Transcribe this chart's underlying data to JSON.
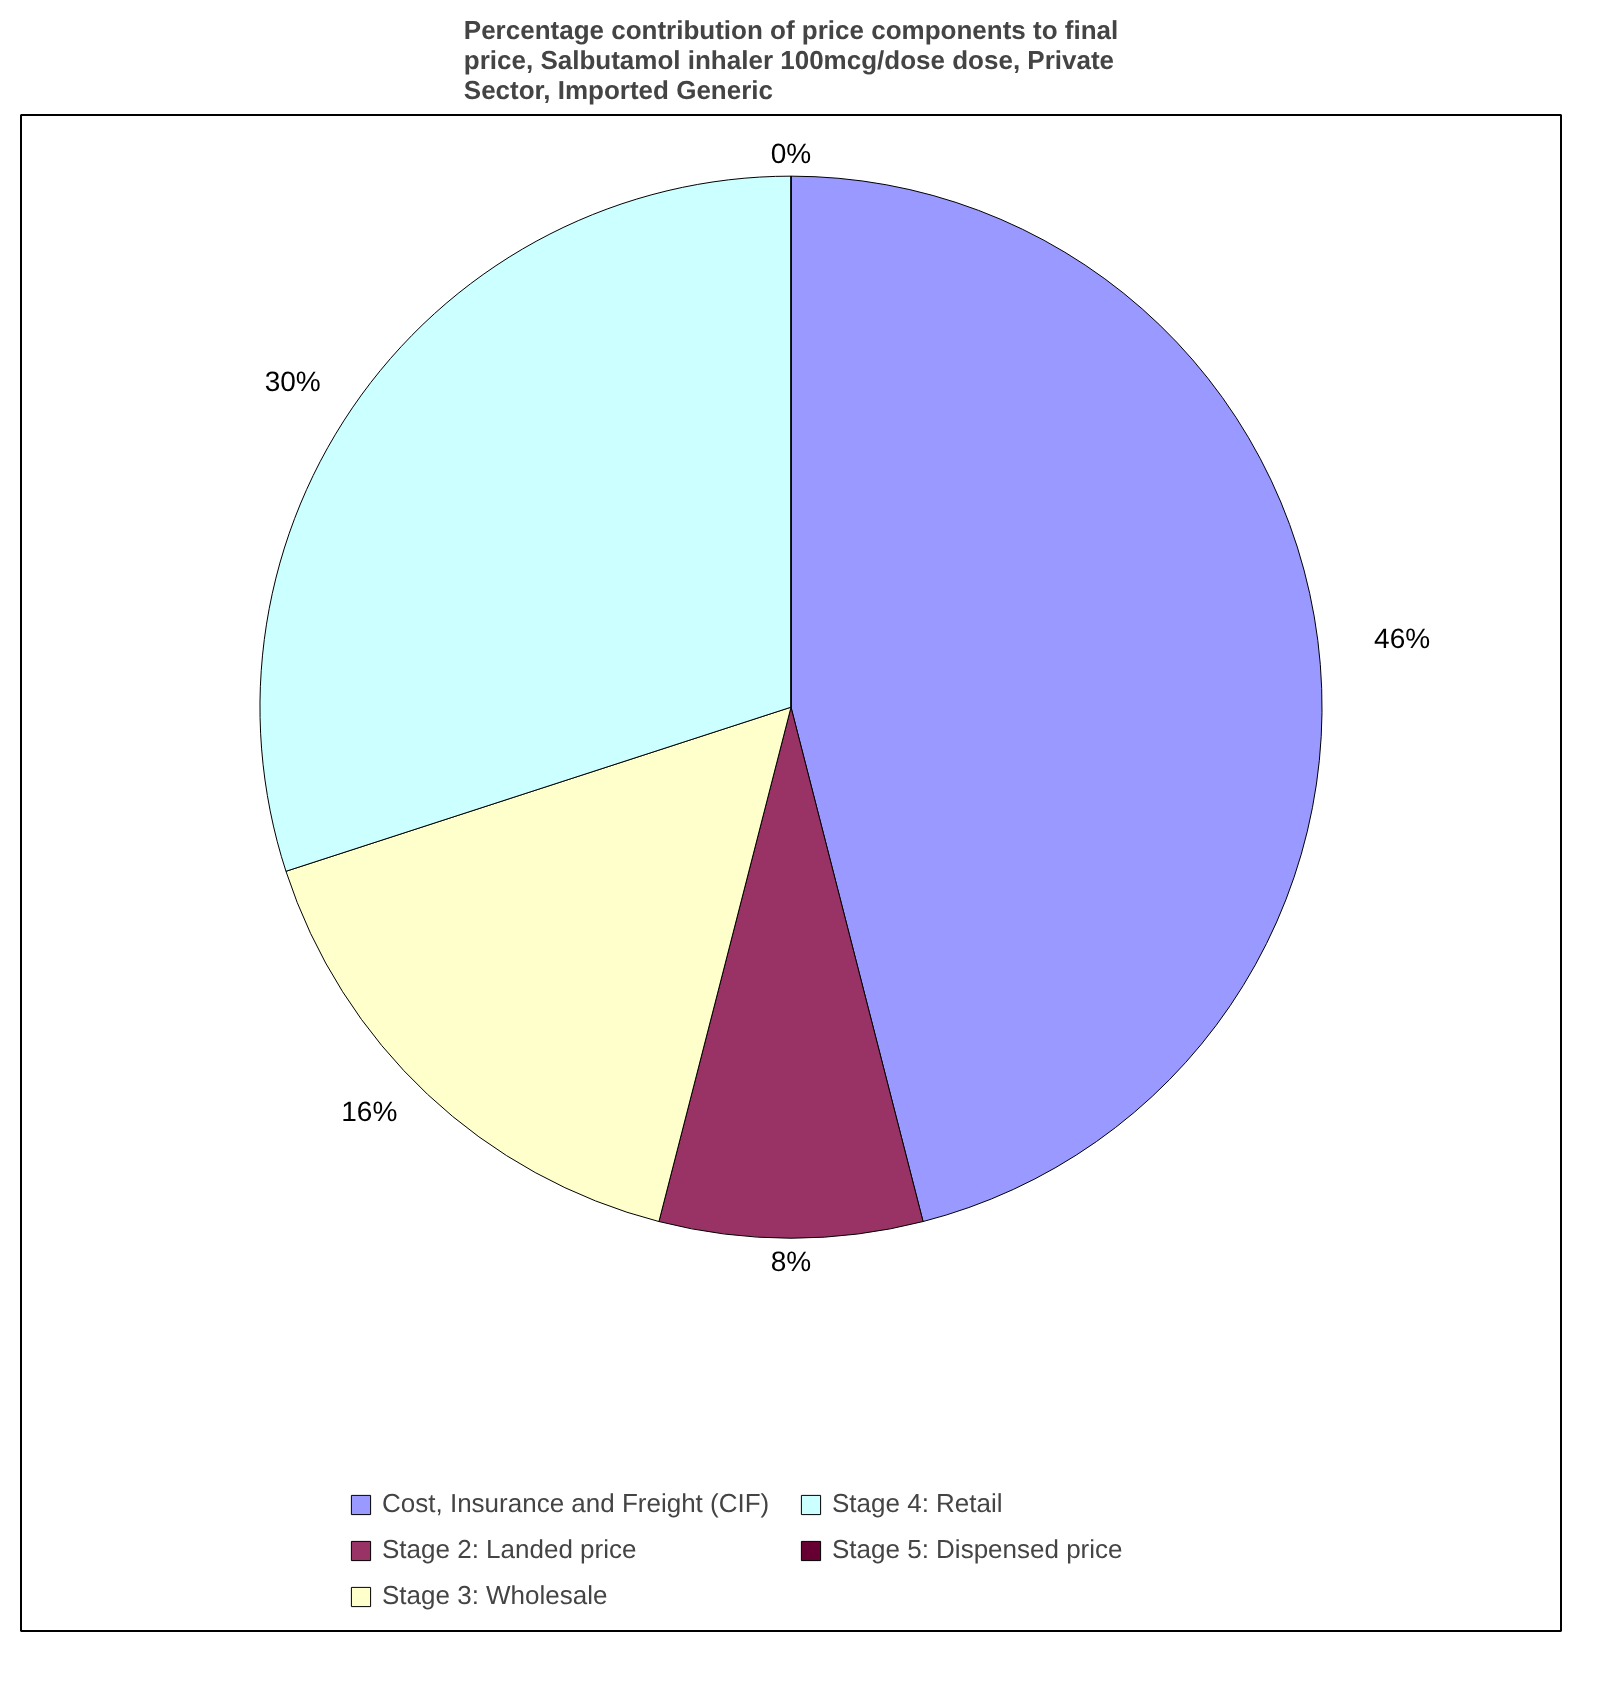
{
  "chart_data": {
    "type": "pie",
    "title": "Percentage contribution of price components to final price, Salbutamol inhaler 100mcg/dose dose, Private Sector, Imported Generic",
    "categories": [
      "Cost, Insurance and Freight (CIF)",
      "Stage 2: Landed price",
      "Stage 3: Wholesale",
      "Stage 4: Retail",
      "Stage 5: Dispensed price"
    ],
    "values": [
      46,
      8,
      16,
      30,
      0
    ],
    "colors": [
      "#9999ff",
      "#993366",
      "#ffffcc",
      "#ccffff",
      "#660033"
    ],
    "value_labels": [
      "46%",
      "8%",
      "16%",
      "30%",
      "0%"
    ],
    "legend": "bottom"
  }
}
